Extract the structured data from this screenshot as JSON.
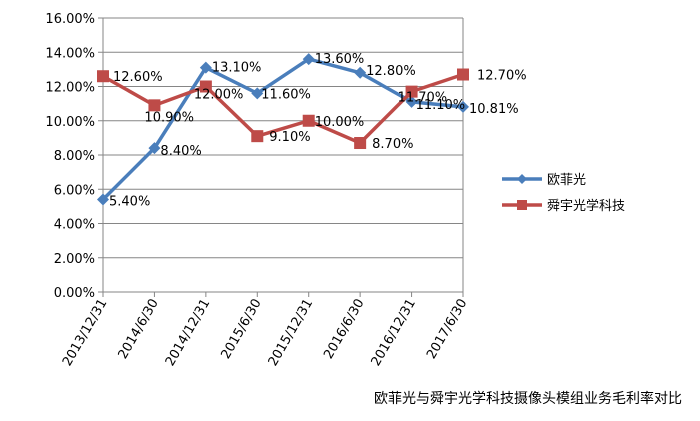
{
  "caption": "欧菲光与舜宇光学科技摄像头模组业务毛利率对比",
  "chart_data": {
    "type": "line",
    "categories": [
      "2013/12/31",
      "2014/6/30",
      "2014/12/31",
      "2015/6/30",
      "2015/12/31",
      "2016/6/30",
      "2016/12/31",
      "2017/6/30"
    ],
    "y_ticks": [
      "0.00%",
      "2.00%",
      "4.00%",
      "6.00%",
      "8.00%",
      "10.00%",
      "12.00%",
      "14.00%",
      "16.00%"
    ],
    "ylim": [
      0,
      16
    ],
    "grid": true,
    "legend_position": "right",
    "series": [
      {
        "name": "欧菲光",
        "color": "#4a7ebb",
        "marker": "diamond",
        "values": [
          5.4,
          8.4,
          13.1,
          11.6,
          13.6,
          12.8,
          11.1,
          10.81
        ],
        "labels": [
          "5.40%",
          "8.40%",
          "13.10%",
          "11.60%",
          "13.60%",
          "12.80%",
          "11.10%",
          "10.81%"
        ]
      },
      {
        "name": "舜宇光学科技",
        "color": "#be4b48",
        "marker": "square",
        "values": [
          12.6,
          10.9,
          12.0,
          9.1,
          10.0,
          8.7,
          11.7,
          12.7
        ],
        "labels": [
          "12.60%",
          "10.90%",
          "12.00%",
          "9.10%",
          "10.00%",
          "8.70%",
          "11.70%",
          "12.70%"
        ]
      }
    ]
  }
}
